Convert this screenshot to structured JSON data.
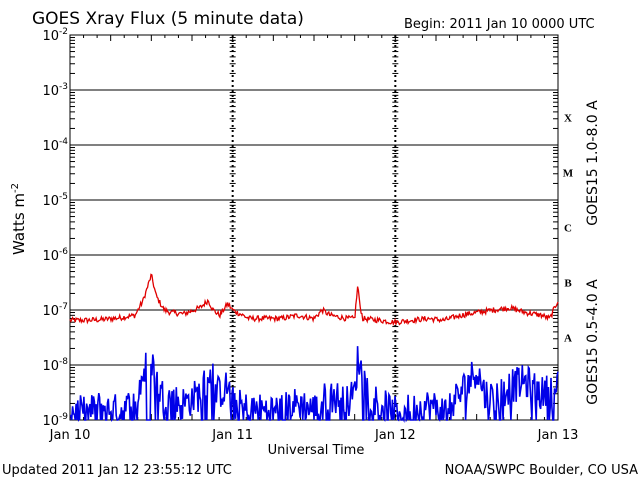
{
  "header": {
    "title": "GOES Xray Flux (5 minute data)",
    "begin": "Begin:  2011 Jan 10 0000 UTC"
  },
  "footer": {
    "updated": "Updated 2011 Jan 12 23:55:12 UTC",
    "credit": "NOAA/SWPC Boulder, CO USA"
  },
  "chart_data": {
    "type": "line",
    "title": "GOES Xray Flux (5 minute data)",
    "xlabel": "Universal Time",
    "ylabel_text": "Watts m",
    "ylabel_exp": "-2",
    "y_scale": "log",
    "ylim": [
      1e-09,
      0.01
    ],
    "xlim_days": [
      0,
      3
    ],
    "x_ticks": [
      "Jan 10",
      "Jan 11",
      "Jan 12",
      "Jan 13"
    ],
    "y_ticks": [
      {
        "base": "10",
        "exp": "-2"
      },
      {
        "base": "10",
        "exp": "-3"
      },
      {
        "base": "10",
        "exp": "-4"
      },
      {
        "base": "10",
        "exp": "-5"
      },
      {
        "base": "10",
        "exp": "-6"
      },
      {
        "base": "10",
        "exp": "-7"
      },
      {
        "base": "10",
        "exp": "-8"
      },
      {
        "base": "10",
        "exp": "-9"
      }
    ],
    "flare_classes": [
      "X",
      "M",
      "C",
      "B",
      "A"
    ],
    "grid": "horizontal lines at each decade; dashed day separators",
    "legend": "right side, vertical",
    "series": [
      {
        "name": "GOES15 1.0-8.0 A",
        "color": "#e00000",
        "x": [
          0,
          0.1,
          0.2,
          0.3,
          0.4,
          0.45,
          0.5,
          0.53,
          0.55,
          0.58,
          0.62,
          0.7,
          0.8,
          0.85,
          0.88,
          0.92,
          0.97,
          1.0,
          1.1,
          1.2,
          1.3,
          1.4,
          1.5,
          1.55,
          1.6,
          1.7,
          1.75,
          1.77,
          1.78,
          1.8,
          1.9,
          2.0,
          2.1,
          2.2,
          2.3,
          2.4,
          2.5,
          2.6,
          2.7,
          2.8,
          2.9,
          2.95,
          3.0
        ],
        "y": [
          6.5e-08,
          6.5e-08,
          6.7e-08,
          7.2e-08,
          8e-08,
          1.5e-07,
          4.3e-07,
          1.8e-07,
          1.4e-07,
          1e-07,
          9e-08,
          8.5e-08,
          1.1e-07,
          1.5e-07,
          1e-07,
          8e-08,
          1.3e-07,
          1e-07,
          7e-08,
          7e-08,
          7e-08,
          8e-08,
          7e-08,
          1e-07,
          8e-08,
          7e-08,
          7e-08,
          3e-07,
          1.3e-07,
          7e-08,
          6.5e-08,
          6e-08,
          6.5e-08,
          7e-08,
          6.5e-08,
          8e-08,
          9e-08,
          1e-07,
          1.1e-07,
          9e-08,
          8e-08,
          7e-08,
          1.5e-07
        ]
      },
      {
        "name": "GOES15 0.5-4.0 A",
        "color": "#0000e8",
        "x": [
          0,
          0.1,
          0.2,
          0.3,
          0.4,
          0.45,
          0.5,
          0.53,
          0.56,
          0.6,
          0.7,
          0.8,
          0.87,
          0.9,
          0.97,
          1.0,
          1.1,
          1.2,
          1.3,
          1.4,
          1.5,
          1.6,
          1.7,
          1.75,
          1.77,
          1.8,
          1.85,
          1.9,
          2.0,
          2.1,
          2.2,
          2.3,
          2.4,
          2.45,
          2.5,
          2.55,
          2.6,
          2.7,
          2.8,
          2.9,
          3.0
        ],
        "y": [
          1.5e-09,
          1.3e-09,
          1.8e-09,
          1.4e-09,
          2e-09,
          7e-09,
          1.4e-08,
          5e-09,
          3e-09,
          2.5e-09,
          2e-09,
          3e-09,
          8e-09,
          3e-09,
          4e-09,
          2e-09,
          1.5e-09,
          1.5e-09,
          1.5e-09,
          2e-09,
          1.5e-09,
          3e-09,
          2e-09,
          3e-09,
          1.4e-08,
          6e-09,
          3e-09,
          2e-09,
          1.3e-09,
          1.5e-09,
          1.8e-09,
          1.5e-09,
          3e-09,
          5e-09,
          8.5e-09,
          3e-09,
          2.5e-09,
          4e-09,
          5e-09,
          3e-09,
          4e-09
        ]
      }
    ]
  }
}
